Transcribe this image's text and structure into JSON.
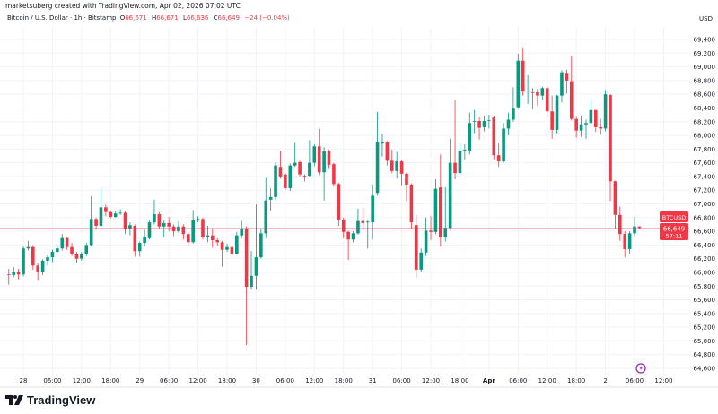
{
  "header": {
    "watermark": "marketsuberg created with TradingView.com, Apr 02, 2026 07:02 UTC",
    "symbol_title": "Bitcoin / U.S. Dollar · 1h · Bitstamp",
    "ohlc": {
      "o_label": "O",
      "o": "66,671",
      "h_label": "H",
      "h": "66,671",
      "l_label": "L",
      "l": "66,636",
      "c_label": "C",
      "c": "66,649",
      "change": "−24 (−0.04%)"
    },
    "currency": "USD"
  },
  "price_tag": {
    "symbol": "BTCUSD",
    "price": "66,649",
    "countdown": "57:11",
    "color": "#f23645"
  },
  "footer": {
    "brand": "TradingView"
  },
  "chart_data": {
    "type": "candlestick",
    "interval": "1h",
    "up_color": "#089981",
    "down_color": "#f23645",
    "grid": true,
    "ylim": [
      64340,
      69580
    ],
    "y_ticks": [
      69400,
      69200,
      69000,
      68800,
      68600,
      68400,
      68200,
      68000,
      67800,
      67600,
      67400,
      67200,
      67000,
      66800,
      66600,
      66400,
      66200,
      66000,
      65800,
      65600,
      65400,
      65200,
      65000,
      64800,
      64600
    ],
    "x_ticks": [
      {
        "label": "28",
        "time": "03-28 00:00",
        "bold": true
      },
      {
        "label": "06:00",
        "time": "03-28 06:00"
      },
      {
        "label": "12:00",
        "time": "03-28 12:00"
      },
      {
        "label": "18:00",
        "time": "03-28 18:00"
      },
      {
        "label": "29",
        "time": "03-29 00:00",
        "bold": true
      },
      {
        "label": "06:00",
        "time": "03-29 06:00"
      },
      {
        "label": "12:00",
        "time": "03-29 12:00"
      },
      {
        "label": "18:00",
        "time": "03-29 18:00"
      },
      {
        "label": "30",
        "time": "03-30 00:00",
        "bold": true
      },
      {
        "label": "06:00",
        "time": "03-30 06:00"
      },
      {
        "label": "12:00",
        "time": "03-30 12:00"
      },
      {
        "label": "18:00",
        "time": "03-30 18:00"
      },
      {
        "label": "31",
        "time": "03-31 00:00",
        "bold": true
      },
      {
        "label": "06:00",
        "time": "03-31 06:00"
      },
      {
        "label": "12:00",
        "time": "03-31 12:00"
      },
      {
        "label": "18:00",
        "time": "03-31 18:00"
      },
      {
        "label": "Apr",
        "time": "04-01 00:00",
        "bold": true
      },
      {
        "label": "06:00",
        "time": "04-01 06:00"
      },
      {
        "label": "12:00",
        "time": "04-01 12:00"
      },
      {
        "label": "18:00",
        "time": "04-01 18:00"
      },
      {
        "label": "2",
        "time": "04-02 00:00",
        "bold": true
      },
      {
        "label": "06:00",
        "time": "04-02 06:00"
      },
      {
        "label": "12:00",
        "time": "04-02 12:00"
      }
    ],
    "current_price": 66649,
    "candles_format": [
      "time",
      "open",
      "high",
      "low",
      "close"
    ],
    "candles": [
      [
        "03-27 21:00",
        65970,
        66050,
        65820,
        65960
      ],
      [
        "03-27 22:00",
        65960,
        66080,
        65930,
        66010
      ],
      [
        "03-27 23:00",
        66010,
        66050,
        65900,
        65970
      ],
      [
        "03-28 00:00",
        65970,
        66380,
        65940,
        66350
      ],
      [
        "03-28 01:00",
        66350,
        66460,
        66320,
        66370
      ],
      [
        "03-28 02:00",
        66370,
        66400,
        66040,
        66100
      ],
      [
        "03-28 03:00",
        66100,
        66130,
        65880,
        66000
      ],
      [
        "03-28 04:00",
        66000,
        66190,
        65960,
        66170
      ],
      [
        "03-28 05:00",
        66170,
        66250,
        66100,
        66220
      ],
      [
        "03-28 06:00",
        66220,
        66330,
        66150,
        66300
      ],
      [
        "03-28 07:00",
        66300,
        66380,
        66280,
        66350
      ],
      [
        "03-28 08:00",
        66350,
        66560,
        66320,
        66500
      ],
      [
        "03-28 09:00",
        66500,
        66520,
        66330,
        66370
      ],
      [
        "03-28 10:00",
        66370,
        66430,
        66240,
        66270
      ],
      [
        "03-28 11:00",
        66270,
        66300,
        66140,
        66200
      ],
      [
        "03-28 12:00",
        66200,
        66300,
        66170,
        66270
      ],
      [
        "03-28 13:00",
        66270,
        66430,
        66240,
        66400
      ],
      [
        "03-28 14:00",
        66400,
        67110,
        66380,
        66780
      ],
      [
        "03-28 15:00",
        66780,
        66800,
        66620,
        66680
      ],
      [
        "03-28 16:00",
        66680,
        67230,
        66660,
        66950
      ],
      [
        "03-28 17:00",
        66950,
        66990,
        66820,
        66880
      ],
      [
        "03-28 18:00",
        66880,
        66900,
        66790,
        66810
      ],
      [
        "03-28 19:00",
        66810,
        66890,
        66800,
        66860
      ],
      [
        "03-28 20:00",
        66860,
        66920,
        66840,
        66870
      ],
      [
        "03-28 21:00",
        66870,
        66890,
        66560,
        66640
      ],
      [
        "03-28 22:00",
        66640,
        66730,
        66540,
        66690
      ],
      [
        "03-28 23:00",
        66680,
        66700,
        66230,
        66310
      ],
      [
        "03-29 00:00",
        66310,
        66450,
        66230,
        66430
      ],
      [
        "03-29 01:00",
        66430,
        66620,
        66380,
        66510
      ],
      [
        "03-29 02:00",
        66500,
        66760,
        66480,
        66730
      ],
      [
        "03-29 03:00",
        66730,
        67060,
        66700,
        66850
      ],
      [
        "03-29 04:00",
        66850,
        66880,
        66640,
        66670
      ],
      [
        "03-29 05:00",
        66670,
        66760,
        66520,
        66720
      ],
      [
        "03-29 06:00",
        66720,
        66810,
        66600,
        66670
      ],
      [
        "03-29 07:00",
        66670,
        66700,
        66530,
        66600
      ],
      [
        "03-29 08:00",
        66600,
        66750,
        66580,
        66670
      ],
      [
        "03-29 09:00",
        66670,
        66700,
        66480,
        66560
      ],
      [
        "03-29 10:00",
        66560,
        66580,
        66370,
        66440
      ],
      [
        "03-29 11:00",
        66440,
        66910,
        66420,
        66760
      ],
      [
        "03-29 12:00",
        66760,
        66820,
        66730,
        66780
      ],
      [
        "03-29 13:00",
        66780,
        66800,
        66480,
        66510
      ],
      [
        "03-29 14:00",
        66520,
        66680,
        66440,
        66540
      ],
      [
        "03-29 15:00",
        66540,
        66640,
        66360,
        66470
      ],
      [
        "03-29 16:00",
        66470,
        66500,
        66390,
        66440
      ],
      [
        "03-29 17:00",
        66440,
        66460,
        66080,
        66330
      ],
      [
        "03-29 18:00",
        66330,
        66420,
        66300,
        66370
      ],
      [
        "03-29 19:00",
        66370,
        66390,
        66250,
        66270
      ],
      [
        "03-29 20:00",
        66270,
        66590,
        66260,
        66540
      ],
      [
        "03-29 21:00",
        66540,
        66750,
        66500,
        66640
      ],
      [
        "03-29 22:00",
        66640,
        66670,
        64940,
        65790
      ],
      [
        "03-29 23:00",
        65790,
        66310,
        65750,
        65950
      ],
      [
        "03-30 00:00",
        65950,
        66990,
        65750,
        66220
      ],
      [
        "03-30 01:00",
        66220,
        66640,
        66200,
        66570
      ],
      [
        "03-30 02:00",
        66570,
        67380,
        66500,
        67050
      ],
      [
        "03-30 03:00",
        67060,
        67230,
        66900,
        67100
      ],
      [
        "03-30 04:00",
        67100,
        67610,
        67050,
        67560
      ],
      [
        "03-30 05:00",
        67540,
        67780,
        67370,
        67400
      ],
      [
        "03-30 06:00",
        67430,
        67450,
        67200,
        67230
      ],
      [
        "03-30 07:00",
        67230,
        67590,
        67190,
        67560
      ],
      [
        "03-30 08:00",
        67560,
        67890,
        67540,
        67600
      ],
      [
        "03-30 09:00",
        67610,
        67630,
        67400,
        67430
      ],
      [
        "03-30 10:00",
        67410,
        67430,
        67330,
        67400
      ],
      [
        "03-30 11:00",
        67410,
        67930,
        67400,
        67600
      ],
      [
        "03-30 12:00",
        67600,
        67870,
        67550,
        67840
      ],
      [
        "03-30 13:00",
        67840,
        68100,
        67420,
        67460
      ],
      [
        "03-30 14:00",
        67460,
        67830,
        67050,
        67770
      ],
      [
        "03-30 15:00",
        67770,
        67790,
        67510,
        67570
      ],
      [
        "03-30 16:00",
        67580,
        67600,
        67250,
        67290
      ],
      [
        "03-30 17:00",
        67290,
        67310,
        66680,
        66770
      ],
      [
        "03-30 18:00",
        66770,
        66800,
        66500,
        66590
      ],
      [
        "03-30 19:00",
        66590,
        66610,
        66180,
        66480
      ],
      [
        "03-30 20:00",
        66480,
        66600,
        66440,
        66570
      ],
      [
        "03-30 21:00",
        66570,
        66930,
        66550,
        66750
      ],
      [
        "03-30 22:00",
        66750,
        66940,
        66620,
        66720
      ],
      [
        "03-30 23:00",
        66730,
        66760,
        66350,
        66740
      ],
      [
        "03-31 00:00",
        66730,
        67280,
        66480,
        67120
      ],
      [
        "03-31 01:00",
        67160,
        68340,
        67120,
        67900
      ],
      [
        "03-31 02:00",
        67880,
        68020,
        67690,
        67900
      ],
      [
        "03-31 03:00",
        67900,
        67920,
        67560,
        67630
      ],
      [
        "03-31 04:00",
        67630,
        67790,
        67450,
        67480
      ],
      [
        "03-31 05:00",
        67480,
        67760,
        67370,
        67620
      ],
      [
        "03-31 06:00",
        67620,
        67640,
        67260,
        67440
      ],
      [
        "03-31 07:00",
        67440,
        67460,
        67040,
        67280
      ],
      [
        "03-31 08:00",
        67280,
        67300,
        66640,
        66730
      ],
      [
        "03-31 09:00",
        66690,
        66840,
        65920,
        66040
      ],
      [
        "03-31 10:00",
        66040,
        66350,
        66000,
        66290
      ],
      [
        "03-31 11:00",
        66290,
        66800,
        66240,
        66610
      ],
      [
        "03-31 12:00",
        66610,
        66820,
        66470,
        66590
      ],
      [
        "03-31 13:00",
        66590,
        67360,
        66560,
        67220
      ],
      [
        "03-31 14:00",
        67240,
        67720,
        66380,
        66520
      ],
      [
        "03-31 15:00",
        66520,
        67240,
        66450,
        66650
      ],
      [
        "03-31 16:00",
        66650,
        67950,
        66620,
        67600
      ],
      [
        "03-31 17:00",
        67600,
        68510,
        67360,
        67450
      ],
      [
        "03-31 18:00",
        67450,
        67880,
        67420,
        67780
      ],
      [
        "03-31 19:00",
        67780,
        67870,
        67650,
        67790
      ],
      [
        "03-31 20:00",
        67780,
        68330,
        67720,
        68180
      ],
      [
        "03-31 21:00",
        68200,
        68370,
        68030,
        68210
      ],
      [
        "03-31 22:00",
        68210,
        68260,
        67940,
        68110
      ],
      [
        "03-31 23:00",
        68120,
        68280,
        68060,
        68210
      ],
      [
        "04-01 00:00",
        68210,
        68300,
        68100,
        68220
      ],
      [
        "04-01 01:00",
        68260,
        68290,
        67650,
        67710
      ],
      [
        "04-01 02:00",
        67710,
        67880,
        67540,
        67620
      ],
      [
        "04-01 03:00",
        67620,
        68180,
        67600,
        68100
      ],
      [
        "04-01 04:00",
        68100,
        68330,
        68000,
        68230
      ],
      [
        "04-01 05:00",
        68230,
        68700,
        68200,
        68390
      ],
      [
        "04-01 06:00",
        68410,
        69190,
        68390,
        69090
      ],
      [
        "04-01 07:00",
        69090,
        69270,
        68580,
        68640
      ],
      [
        "04-01 08:00",
        68640,
        68880,
        68460,
        68650
      ],
      [
        "04-01 09:00",
        68630,
        68690,
        68380,
        68620
      ],
      [
        "04-01 10:00",
        68630,
        68680,
        68430,
        68580
      ],
      [
        "04-01 11:00",
        68580,
        68710,
        68510,
        68690
      ],
      [
        "04-01 12:00",
        68690,
        68720,
        68260,
        68350
      ],
      [
        "04-01 13:00",
        68350,
        68580,
        67950,
        68080
      ],
      [
        "04-01 14:00",
        68080,
        68590,
        68030,
        68580
      ],
      [
        "04-01 15:00",
        68580,
        68950,
        68480,
        68920
      ],
      [
        "04-01 16:00",
        68900,
        68960,
        68610,
        68800
      ],
      [
        "04-01 17:00",
        68790,
        69160,
        68220,
        68240
      ],
      [
        "04-01 18:00",
        68240,
        68270,
        67970,
        68070
      ],
      [
        "04-01 19:00",
        68070,
        68290,
        67980,
        68160
      ],
      [
        "04-01 20:00",
        68160,
        68230,
        67950,
        68180
      ],
      [
        "04-01 21:00",
        68180,
        68510,
        68130,
        68370
      ],
      [
        "04-01 22:00",
        68370,
        68370,
        68050,
        68120
      ],
      [
        "04-01 23:00",
        68120,
        68240,
        68010,
        68100
      ],
      [
        "04-02 00:00",
        68100,
        68660,
        68060,
        68600
      ],
      [
        "04-02 01:00",
        68590,
        68600,
        67040,
        67330
      ],
      [
        "04-02 02:00",
        67330,
        67340,
        66640,
        66840
      ],
      [
        "04-02 03:00",
        66840,
        66960,
        66460,
        66560
      ],
      [
        "04-02 04:00",
        66560,
        66600,
        66220,
        66340
      ],
      [
        "04-02 05:00",
        66340,
        66600,
        66270,
        66570
      ],
      [
        "04-02 06:00",
        66570,
        66810,
        66530,
        66671
      ],
      [
        "04-02 07:00",
        66671,
        66671,
        66636,
        66649
      ]
    ]
  }
}
